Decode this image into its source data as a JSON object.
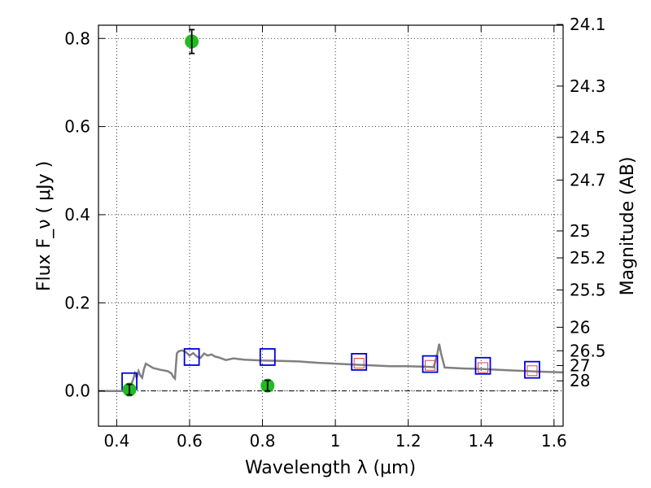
{
  "chart_data": {
    "type": "scatter",
    "xlabel": "Wavelength  λ (μm)",
    "ylabel": "Flux  F_ν  ( μJy )",
    "y2label": "Magnitude (AB)",
    "xlim": [
      0.35,
      1.625
    ],
    "ylim": [
      -0.08,
      0.83
    ],
    "grid": true,
    "x_ticks": [
      0.4,
      0.6,
      0.8,
      1.0,
      1.2,
      1.4,
      1.6
    ],
    "x_tick_labels": [
      "0.4",
      "0.6",
      "0.8",
      "1",
      "1.2",
      "1.4",
      "1.6"
    ],
    "y_ticks": [
      0.0,
      0.2,
      0.4,
      0.6,
      0.8
    ],
    "y_tick_labels": [
      "0.0",
      "0.2",
      "0.4",
      "0.6",
      "0.8"
    ],
    "mag_tick_labels": [
      "24.1",
      "24.3",
      "24.5",
      "24.7",
      "25",
      "25.2",
      "25.5",
      "26",
      "26.5",
      "27",
      "28"
    ],
    "colors": {
      "observed": "#22bb22",
      "model_box": "#0000dd",
      "model_box_inner": "#dd4444",
      "sed": "#808080"
    },
    "series": [
      {
        "kind": "observed",
        "x": [
          0.435,
          0.606,
          0.814
        ],
        "y": [
          0.003,
          0.793,
          0.012
        ],
        "yerr": [
          0.012,
          0.027,
          0.012
        ]
      },
      {
        "kind": "model_photometry",
        "x": [
          0.435,
          0.606,
          0.814,
          1.065,
          1.26,
          1.405,
          1.54
        ],
        "y": [
          0.022,
          0.077,
          0.077,
          0.066,
          0.061,
          0.057,
          0.048
        ],
        "inner_x": [
          1.065,
          1.26,
          1.405,
          1.54
        ],
        "inner_y": [
          0.063,
          0.058,
          0.053,
          0.046
        ]
      },
      {
        "kind": "sed",
        "x": [
          0.35,
          0.42,
          0.43,
          0.44,
          0.445,
          0.45,
          0.455,
          0.46,
          0.465,
          0.47,
          0.475,
          0.48,
          0.5,
          0.52,
          0.54,
          0.55,
          0.555,
          0.56,
          0.565,
          0.57,
          0.58,
          0.59,
          0.6,
          0.61,
          0.62,
          0.63,
          0.64,
          0.65,
          0.66,
          0.67,
          0.68,
          0.7,
          0.72,
          0.75,
          0.8,
          0.85,
          0.9,
          0.95,
          1.0,
          1.05,
          1.1,
          1.15,
          1.2,
          1.25,
          1.27,
          1.28,
          1.285,
          1.29,
          1.3,
          1.35,
          1.4,
          1.45,
          1.5,
          1.55,
          1.625
        ],
        "y": [
          0.0,
          0.0,
          0.005,
          0.015,
          0.025,
          0.04,
          0.03,
          0.045,
          0.035,
          0.03,
          0.05,
          0.062,
          0.052,
          0.048,
          0.045,
          0.04,
          0.032,
          0.028,
          0.085,
          0.09,
          0.092,
          0.088,
          0.08,
          0.086,
          0.078,
          0.075,
          0.085,
          0.08,
          0.083,
          0.078,
          0.076,
          0.07,
          0.074,
          0.071,
          0.069,
          0.068,
          0.067,
          0.064,
          0.062,
          0.06,
          0.058,
          0.056,
          0.056,
          0.055,
          0.054,
          0.085,
          0.107,
          0.085,
          0.053,
          0.051,
          0.05,
          0.048,
          0.046,
          0.044,
          0.042
        ]
      }
    ]
  }
}
